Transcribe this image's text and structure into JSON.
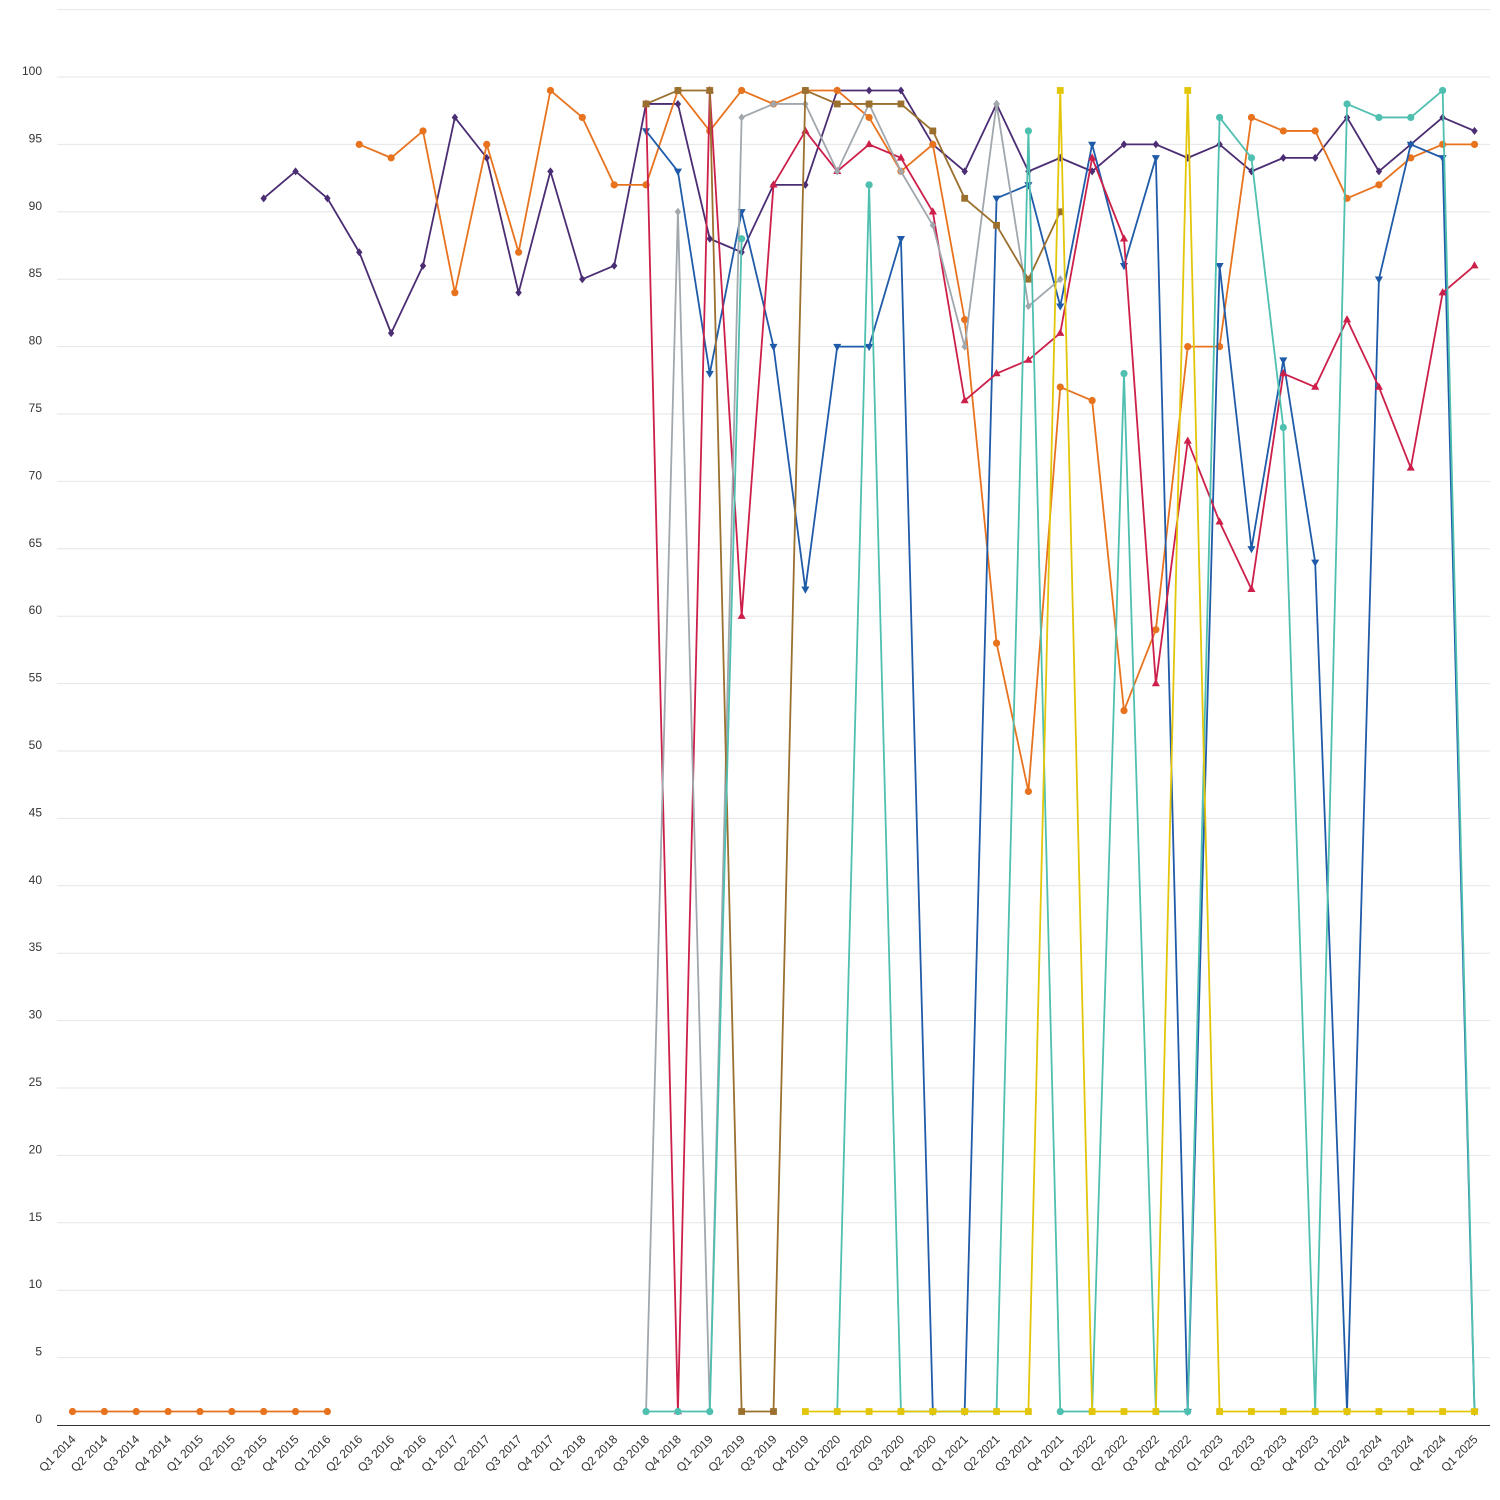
{
  "chart_data": {
    "type": "line",
    "title": "",
    "xlabel": "",
    "ylabel": "",
    "ylim": [
      0,
      105
    ],
    "yticks": [
      0,
      5,
      10,
      15,
      20,
      25,
      30,
      35,
      40,
      45,
      50,
      55,
      60,
      65,
      70,
      75,
      80,
      85,
      90,
      95,
      100
    ],
    "grid": true,
    "legend": "none",
    "categories": [
      "Q1 2014",
      "Q2 2014",
      "Q3 2014",
      "Q4 2014",
      "Q1 2015",
      "Q2 2015",
      "Q3 2015",
      "Q4 2015",
      "Q1 2016",
      "Q2 2016",
      "Q3 2016",
      "Q4 2016",
      "Q1 2017",
      "Q2 2017",
      "Q3 2017",
      "Q4 2017",
      "Q1 2018",
      "Q2 2018",
      "Q3 2018",
      "Q4 2018",
      "Q1 2019",
      "Q2 2019",
      "Q3 2019",
      "Q4 2019",
      "Q1 2020",
      "Q2 2020",
      "Q3 2020",
      "Q4 2020",
      "Q1 2021",
      "Q2 2021",
      "Q3 2021",
      "Q4 2021",
      "Q1 2022",
      "Q2 2022",
      "Q3 2022",
      "Q4 2022",
      "Q1 2023",
      "Q2 2023",
      "Q3 2023",
      "Q4 2023",
      "Q1 2024",
      "Q2 2024",
      "Q3 2024",
      "Q4 2024",
      "Q1 2025"
    ],
    "series": [
      {
        "color": "#e8731f",
        "marker": "circle",
        "values": [
          1,
          1,
          1,
          1,
          1,
          1,
          1,
          1,
          1,
          null,
          null,
          null,
          null,
          null,
          null,
          null,
          null,
          null,
          null,
          null,
          null,
          null,
          null,
          null,
          null,
          null,
          null,
          null,
          null,
          null,
          null,
          null,
          null,
          null,
          null,
          null,
          null,
          null,
          null,
          null,
          null,
          null,
          null,
          null,
          null
        ]
      },
      {
        "color": "#4b2d73",
        "marker": "diamond",
        "values": [
          null,
          null,
          null,
          null,
          null,
          null,
          91,
          93,
          91,
          87,
          81,
          86,
          97,
          94,
          84,
          93,
          85,
          86,
          98,
          98,
          88,
          87,
          92,
          92,
          99,
          99,
          99,
          95,
          93,
          98,
          93,
          94,
          93,
          95,
          95,
          94,
          95,
          93,
          94,
          94,
          97,
          93,
          95,
          97,
          96
        ]
      },
      {
        "color": "#e8731f",
        "marker": "circle",
        "values": [
          null,
          null,
          null,
          null,
          null,
          null,
          null,
          null,
          null,
          95,
          94,
          96,
          84,
          95,
          87,
          99,
          97,
          92,
          92,
          99,
          96,
          99,
          98,
          99,
          99,
          97,
          93,
          95,
          82,
          58,
          47,
          77,
          76,
          53,
          59,
          80,
          80,
          97,
          96,
          96,
          91,
          92,
          94,
          95,
          95
        ]
      },
      {
        "color": "#1f5ba8",
        "marker": "triangle-down",
        "values": [
          null,
          null,
          null,
          null,
          null,
          null,
          null,
          null,
          null,
          null,
          null,
          null,
          null,
          null,
          null,
          null,
          null,
          null,
          96,
          93,
          78,
          90,
          80,
          62,
          80,
          80,
          88,
          1,
          1,
          91,
          92,
          83,
          95,
          86,
          94,
          1,
          86,
          65,
          79,
          64,
          1,
          85,
          95,
          94,
          1
        ]
      },
      {
        "color": "#cc1f4a",
        "marker": "triangle-up",
        "values": [
          null,
          null,
          null,
          null,
          null,
          null,
          null,
          null,
          null,
          null,
          null,
          null,
          null,
          null,
          null,
          null,
          null,
          null,
          98,
          1,
          99,
          60,
          92,
          96,
          93,
          95,
          94,
          90,
          76,
          78,
          79,
          81,
          94,
          88,
          55,
          73,
          67,
          62,
          78,
          77,
          82,
          77,
          71,
          84,
          86
        ]
      },
      {
        "color": "#a0a7ad",
        "marker": "diamond",
        "values": [
          null,
          null,
          null,
          null,
          null,
          null,
          null,
          null,
          null,
          null,
          null,
          null,
          null,
          null,
          null,
          null,
          null,
          null,
          1,
          90,
          1,
          97,
          98,
          98,
          93,
          98,
          93,
          89,
          80,
          98,
          83,
          85,
          null,
          null,
          null,
          null,
          null,
          null,
          null,
          null,
          null,
          null,
          null,
          null,
          null
        ]
      },
      {
        "color": "#9b6f2e",
        "marker": "square",
        "values": [
          null,
          null,
          null,
          null,
          null,
          null,
          null,
          null,
          null,
          null,
          null,
          null,
          null,
          null,
          null,
          null,
          null,
          null,
          98,
          99,
          99,
          1,
          1,
          99,
          98,
          98,
          98,
          96,
          91,
          89,
          85,
          90,
          null,
          null,
          null,
          null,
          null,
          null,
          null,
          null,
          null,
          null,
          null,
          null,
          null
        ]
      },
      {
        "color": "#4fbfb0",
        "marker": "circle",
        "values": [
          null,
          null,
          null,
          null,
          null,
          null,
          null,
          null,
          null,
          null,
          null,
          null,
          null,
          null,
          null,
          null,
          null,
          null,
          1,
          1,
          1,
          88,
          null,
          null,
          1,
          92,
          1,
          1,
          1,
          1,
          96,
          1,
          1,
          78,
          1,
          1,
          97,
          94,
          74,
          1,
          98,
          97,
          97,
          99,
          1
        ]
      },
      {
        "color": "#e3c60a",
        "marker": "square",
        "values": [
          null,
          null,
          null,
          null,
          null,
          null,
          null,
          null,
          null,
          null,
          null,
          null,
          null,
          null,
          null,
          null,
          null,
          null,
          null,
          null,
          null,
          null,
          null,
          1,
          1,
          1,
          1,
          1,
          1,
          1,
          1,
          99,
          1,
          1,
          1,
          99,
          1,
          1,
          1,
          1,
          1,
          1,
          1,
          1,
          1
        ]
      }
    ]
  }
}
